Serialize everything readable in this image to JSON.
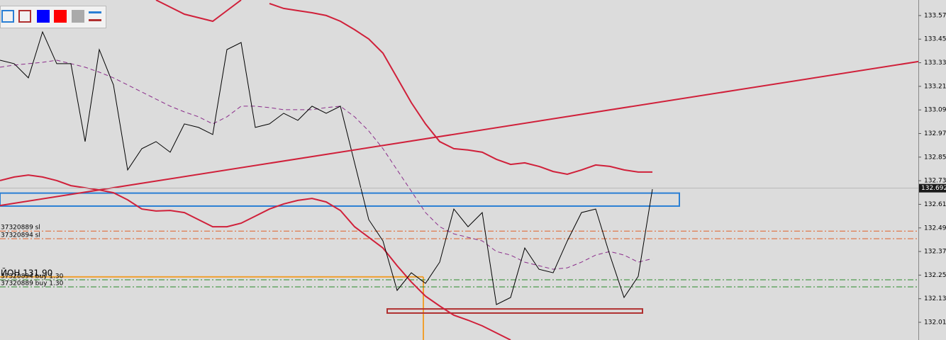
{
  "chart_data": {
    "type": "line",
    "ylim": [
      131.92,
      133.649
    ],
    "yticks": [
      {
        "value": 133.57,
        "label": "133.570"
      },
      {
        "value": 133.45,
        "label": "133.450"
      },
      {
        "value": 133.33,
        "label": "133.330"
      },
      {
        "value": 133.21,
        "label": "133.210"
      },
      {
        "value": 133.09,
        "label": "133.090"
      },
      {
        "value": 132.97,
        "label": "132.970"
      },
      {
        "value": 132.85,
        "label": "132.850"
      },
      {
        "value": 132.73,
        "label": "132.730"
      },
      {
        "value": 132.61,
        "label": "132.610"
      },
      {
        "value": 132.49,
        "label": "132.490"
      },
      {
        "value": 132.37,
        "label": "132.370"
      },
      {
        "value": 132.25,
        "label": "132.250"
      },
      {
        "value": 132.13,
        "label": "132.130"
      },
      {
        "value": 132.01,
        "label": "132.010"
      }
    ],
    "current_price": {
      "value": 132.692,
      "label": "132.692"
    },
    "series": [
      {
        "color": "#8b2d8b",
        "dash": "6 4",
        "width": 1,
        "values": [
          133.307,
          133.318,
          133.325,
          133.332,
          133.343,
          133.325,
          133.307,
          133.282,
          133.253,
          133.217,
          133.181,
          133.145,
          133.109,
          133.08,
          133.055,
          133.019,
          133.055,
          133.109,
          133.109,
          133.102,
          133.091,
          133.091,
          133.091,
          133.102,
          133.109,
          133.055,
          132.983,
          132.893,
          132.785,
          132.677,
          132.568,
          132.496,
          132.46,
          132.442,
          132.424,
          132.37,
          132.352,
          132.316,
          132.298,
          132.28,
          132.287,
          132.316,
          132.352,
          132.37,
          132.352,
          132.316,
          132.334
        ]
      },
      {
        "color": "#d0203a",
        "width": 2,
        "values": [
          null,
          null,
          null,
          null,
          null,
          null,
          null,
          null,
          null,
          null,
          null,
          133.649,
          133.613,
          133.577,
          133.559,
          133.541,
          133.595,
          133.649,
          null,
          133.631,
          133.606,
          133.595,
          133.584,
          133.57,
          133.541,
          133.498,
          133.451,
          133.379,
          133.253,
          133.127,
          133.019,
          132.929,
          132.893,
          132.886,
          132.875,
          132.839,
          132.813,
          132.821,
          132.803,
          132.777,
          132.763,
          132.785,
          132.81,
          132.803,
          132.785,
          132.774,
          132.774
        ]
      },
      {
        "color": "#d0203a",
        "width": 2,
        "values": [
          132.731,
          132.749,
          132.759,
          132.749,
          132.731,
          132.705,
          132.694,
          132.683,
          132.669,
          132.633,
          132.586,
          132.576,
          132.579,
          132.568,
          132.532,
          132.496,
          132.496,
          132.514,
          132.55,
          132.586,
          132.612,
          132.63,
          132.64,
          132.622,
          132.579,
          132.496,
          132.442,
          132.388,
          132.298,
          132.215,
          132.143,
          132.093,
          132.046,
          132.021,
          131.992,
          131.956,
          131.92,
          null,
          null,
          null,
          null,
          null,
          null,
          null,
          null,
          null,
          null
        ]
      },
      {
        "color": "#000000",
        "width": 1,
        "values": [
          133.343,
          133.325,
          133.253,
          133.487,
          133.325,
          133.325,
          132.929,
          133.397,
          133.217,
          132.785,
          132.893,
          132.929,
          132.875,
          133.019,
          133.001,
          132.965,
          133.397,
          133.433,
          133.001,
          133.019,
          133.073,
          133.037,
          133.109,
          133.073,
          133.109,
          132.821,
          132.532,
          132.424,
          132.172,
          132.262,
          132.208,
          132.316,
          132.586,
          132.496,
          132.568,
          132.1,
          132.136,
          132.388,
          132.28,
          132.262,
          132.424,
          132.568,
          132.586,
          132.352,
          132.136,
          132.244,
          132.687
        ]
      }
    ],
    "trendline": {
      "color": "#d0203a",
      "values": [
        132.604,
        133.336
      ]
    },
    "zones": [
      {
        "color": "#2a7fd4",
        "top": 132.667,
        "bottom": 132.601
      },
      {
        "color": "#b03030",
        "top": 132.078,
        "bottom": 132.057
      }
    ],
    "levels": [
      {
        "label": "37320889 sl",
        "value": 132.474,
        "color": "#e0602a",
        "dash": "8 3 2 3"
      },
      {
        "label": "37320894 sl",
        "value": 132.435,
        "color": "#e0602a",
        "dash": "8 3 2 3"
      },
      {
        "label": "ЙОН 131,90",
        "value": 132.241,
        "color": "#f0a030"
      },
      {
        "label": "37320894 buy 1.30",
        "value": 132.226,
        "color": "#2a8a2a",
        "dash": "8 3 2 3"
      },
      {
        "label": "37320889 buy 1.30",
        "value": 132.19,
        "color": "#2a8a2a",
        "dash": "8 3 2 3"
      }
    ]
  }
}
